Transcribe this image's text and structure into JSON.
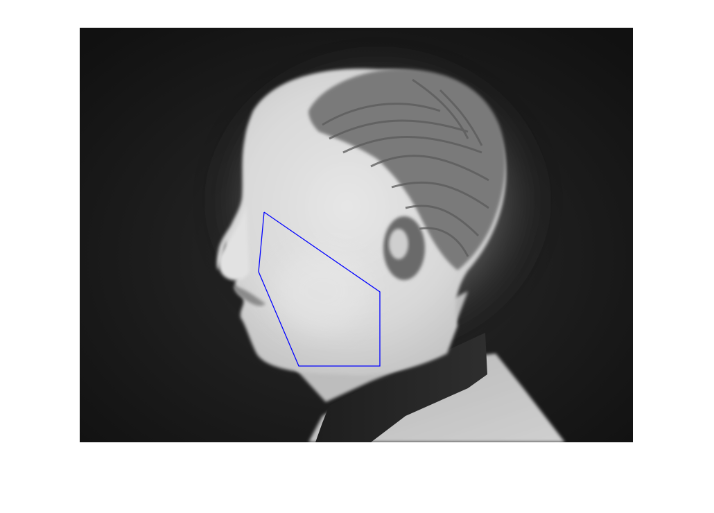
{
  "image": {
    "description_type": "thermal-grayscale-profile-portrait",
    "colors": {
      "background": "#ffffff",
      "image_background": "#141414",
      "overlay_polygon": "#0000ff"
    }
  }
}
